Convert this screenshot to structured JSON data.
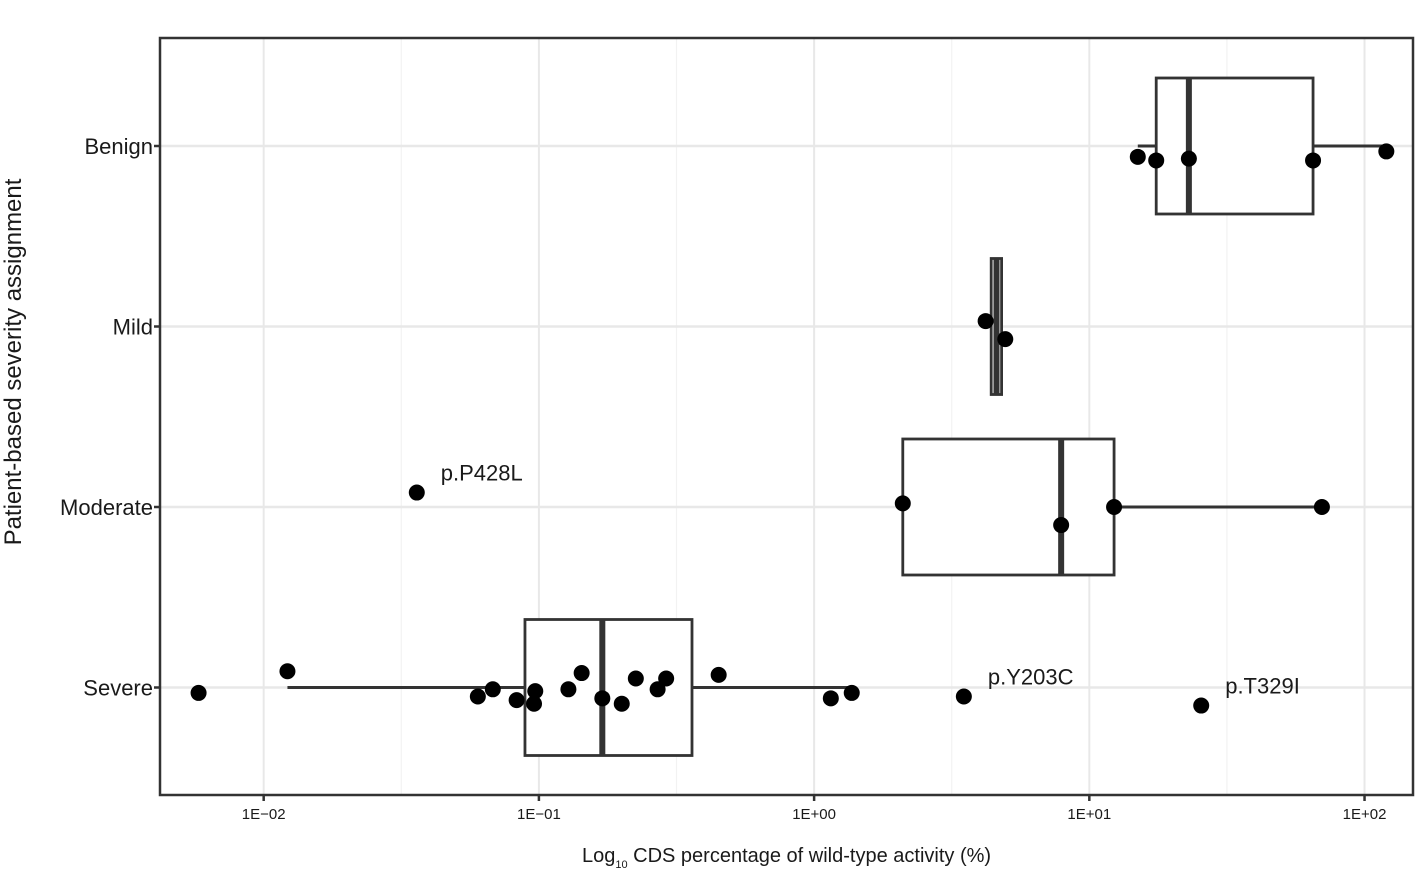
{
  "chart_data": {
    "type": "box",
    "orientation": "horizontal",
    "title": "",
    "xlabel": {
      "prefix": "Log",
      "subscript": "10",
      "suffix": " CDS percentage of wild-type activity (%)"
    },
    "ylabel": "Patient-based severity assignment",
    "x_scale": "log10",
    "xlim": [
      0.0042,
      150
    ],
    "x_ticks": [
      0.01,
      0.1,
      1,
      10,
      100
    ],
    "x_tick_labels": [
      "1E−02",
      "1E−01",
      "1E+00",
      "1E+01",
      "1E+02"
    ],
    "categories": [
      "Benign",
      "Mild",
      "Moderate",
      "Severe"
    ],
    "grid": true,
    "boxes": [
      {
        "category": "Benign",
        "whisker_low": 15,
        "q1": 17.5,
        "median": 23,
        "q3": 65,
        "whisker_high": 120
      },
      {
        "category": "Mild",
        "whisker_low": 4.4,
        "q1": 4.4,
        "median": 4.6,
        "q3": 4.8,
        "whisker_high": 4.8
      },
      {
        "category": "Moderate",
        "whisker_low": 2.1,
        "q1": 2.1,
        "median": 7.9,
        "q3": 12.3,
        "whisker_high": 70
      },
      {
        "category": "Severe",
        "whisker_low": 0.0122,
        "q1": 0.089,
        "median": 0.17,
        "q3": 0.36,
        "whisker_high": 1.35
      }
    ],
    "points": [
      {
        "category": "Benign",
        "x": 15,
        "jitter": -0.06
      },
      {
        "category": "Benign",
        "x": 17.5,
        "jitter": -0.08
      },
      {
        "category": "Benign",
        "x": 23,
        "jitter": -0.07
      },
      {
        "category": "Benign",
        "x": 65,
        "jitter": -0.08
      },
      {
        "category": "Benign",
        "x": 120,
        "jitter": -0.03
      },
      {
        "category": "Mild",
        "x": 4.2,
        "jitter": 0.03
      },
      {
        "category": "Mild",
        "x": 4.95,
        "jitter": -0.07
      },
      {
        "category": "Moderate",
        "x": 0.036,
        "jitter": 0.08,
        "label": "p.P428L"
      },
      {
        "category": "Moderate",
        "x": 2.1,
        "jitter": 0.02
      },
      {
        "category": "Moderate",
        "x": 7.9,
        "jitter": -0.1
      },
      {
        "category": "Moderate",
        "x": 12.3,
        "jitter": 0.0
      },
      {
        "category": "Moderate",
        "x": 70,
        "jitter": 0.0
      },
      {
        "category": "Severe",
        "x": 0.0058,
        "jitter": -0.03
      },
      {
        "category": "Severe",
        "x": 0.0122,
        "jitter": 0.09
      },
      {
        "category": "Severe",
        "x": 0.06,
        "jitter": -0.05
      },
      {
        "category": "Severe",
        "x": 0.068,
        "jitter": -0.01
      },
      {
        "category": "Severe",
        "x": 0.083,
        "jitter": -0.07
      },
      {
        "category": "Severe",
        "x": 0.096,
        "jitter": -0.09
      },
      {
        "category": "Severe",
        "x": 0.097,
        "jitter": -0.02
      },
      {
        "category": "Severe",
        "x": 0.128,
        "jitter": -0.01
      },
      {
        "category": "Severe",
        "x": 0.143,
        "jitter": 0.08
      },
      {
        "category": "Severe",
        "x": 0.17,
        "jitter": -0.06
      },
      {
        "category": "Severe",
        "x": 0.2,
        "jitter": -0.09
      },
      {
        "category": "Severe",
        "x": 0.225,
        "jitter": 0.05
      },
      {
        "category": "Severe",
        "x": 0.27,
        "jitter": -0.01
      },
      {
        "category": "Severe",
        "x": 0.29,
        "jitter": 0.05
      },
      {
        "category": "Severe",
        "x": 0.45,
        "jitter": 0.07
      },
      {
        "category": "Severe",
        "x": 1.15,
        "jitter": -0.06
      },
      {
        "category": "Severe",
        "x": 1.37,
        "jitter": -0.03
      },
      {
        "category": "Severe",
        "x": 3.5,
        "jitter": -0.05,
        "label": "p.Y203C"
      },
      {
        "category": "Severe",
        "x": 25.5,
        "jitter": -0.1,
        "label": "p.T329I"
      }
    ]
  }
}
